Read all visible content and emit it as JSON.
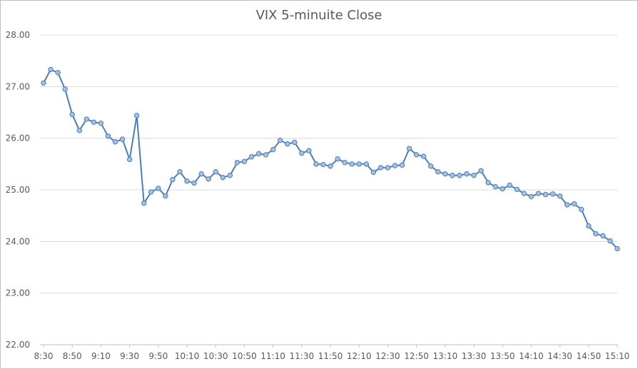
{
  "chart_data": {
    "type": "line",
    "title": "VIX 5-minuite Close",
    "xlabel": "",
    "ylabel": "",
    "ylim": [
      22.0,
      28.0
    ],
    "y_ticks": [
      "22.00",
      "23.00",
      "24.00",
      "25.00",
      "26.00",
      "27.00",
      "28.00"
    ],
    "x_tick_labels": [
      "8:30",
      "8:50",
      "9:10",
      "9:30",
      "9:50",
      "10:10",
      "10:30",
      "10:50",
      "11:10",
      "11:30",
      "11:50",
      "12:10",
      "12:30",
      "12:50",
      "13:10",
      "13:30",
      "13:50",
      "14:10",
      "14:30",
      "14:50",
      "15:10"
    ],
    "grid": true,
    "legend": "none",
    "colors": {
      "line": "#4a7ebb",
      "marker_fill": "#a7c0de",
      "grid": "#d9d9d9"
    },
    "series": [
      {
        "values": [
          27.07,
          27.33,
          27.27,
          26.95,
          26.46,
          26.15,
          26.37,
          26.31,
          26.29,
          26.04,
          25.93,
          25.98,
          25.59,
          26.44,
          24.74,
          24.96,
          25.03,
          24.88,
          25.2,
          25.35,
          25.17,
          25.13,
          25.31,
          25.21,
          25.35,
          25.24,
          25.28,
          25.53,
          25.55,
          25.64,
          25.7,
          25.68,
          25.78,
          25.96,
          25.89,
          25.92,
          25.71,
          25.76,
          25.5,
          25.49,
          25.46,
          25.6,
          25.53,
          25.5,
          25.5,
          25.5,
          25.34,
          25.43,
          25.43,
          25.47,
          25.48,
          25.8,
          25.68,
          25.65,
          25.46,
          25.35,
          25.31,
          25.28,
          25.28,
          25.31,
          25.28,
          25.37,
          25.14,
          25.06,
          25.02,
          25.09,
          25.01,
          24.93,
          24.87,
          24.93,
          24.91,
          24.92,
          24.88,
          24.71,
          24.73,
          24.62,
          24.3,
          24.15,
          24.11,
          24.01,
          23.86
        ]
      }
    ]
  }
}
